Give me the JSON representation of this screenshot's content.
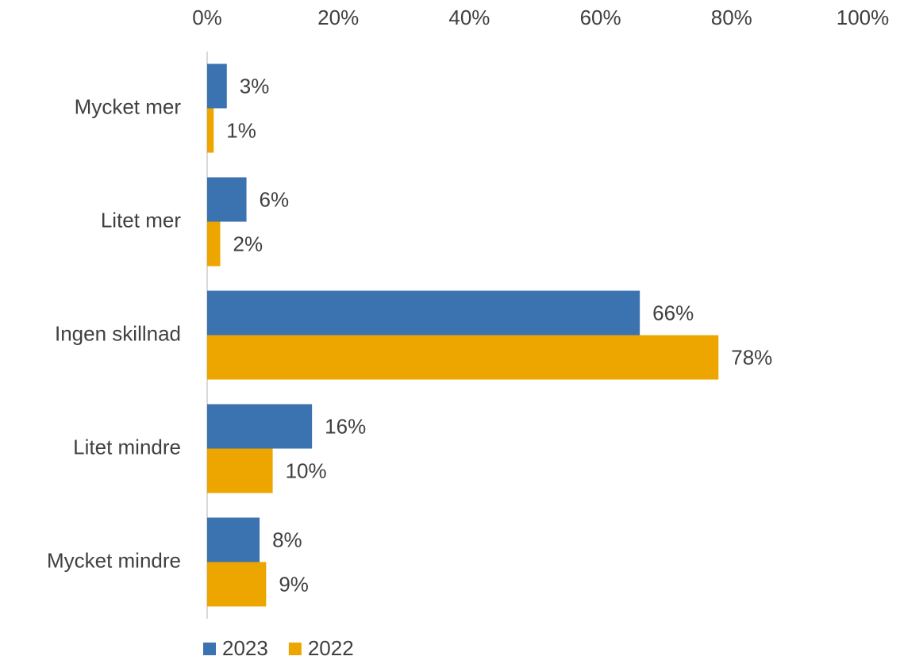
{
  "chart_data": {
    "type": "hbar",
    "categories": [
      "Mycket mer",
      "Litet mer",
      "Ingen skillnad",
      "Litet mindre",
      "Mycket mindre"
    ],
    "series": [
      {
        "name": "2023",
        "color": "#3b72b0",
        "values": [
          3,
          6,
          66,
          16,
          8
        ],
        "value_labels": [
          "3%",
          "6%",
          "66%",
          "16%",
          "8%"
        ]
      },
      {
        "name": "2022",
        "color": "#eda500",
        "values": [
          1,
          2,
          78,
          10,
          9
        ],
        "value_labels": [
          "1%",
          "2%",
          "78%",
          "10%",
          "9%"
        ]
      }
    ],
    "xlim": [
      0,
      100
    ],
    "xticks": [
      {
        "value": 0,
        "label": "0%"
      },
      {
        "value": 20,
        "label": "20%"
      },
      {
        "value": 40,
        "label": "40%"
      },
      {
        "value": 60,
        "label": "60%"
      },
      {
        "value": 80,
        "label": "80%"
      },
      {
        "value": 100,
        "label": "100%"
      }
    ],
    "legend": "bottom-left"
  }
}
